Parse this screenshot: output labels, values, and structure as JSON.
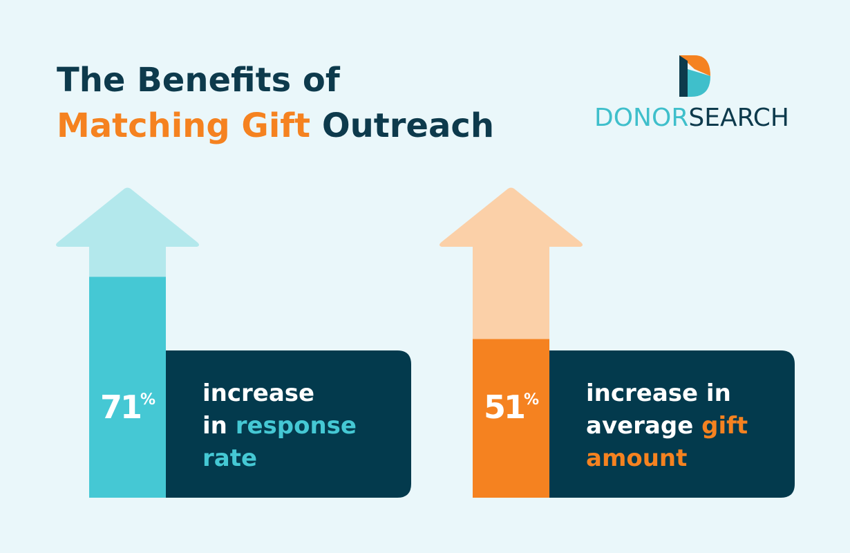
{
  "header": {
    "accent_color": "#f58220",
    "title_lines": [
      [
        {
          "text": "The Benefits of"
        }
      ],
      [
        {
          "text": "Matching Gift",
          "accent": true
        },
        {
          "text": " Outreach"
        }
      ]
    ]
  },
  "logo": {
    "accent_color": "#3fbfcb",
    "parts": [
      {
        "text": "DONOR",
        "accent": true
      },
      {
        "text": "SEARCH"
      }
    ]
  },
  "stats": [
    {
      "value": 71,
      "unit": "%",
      "color": "#45c8d4",
      "light_color": "#b3e8ec",
      "lines": [
        [
          {
            "text": "increase"
          }
        ],
        [
          {
            "text": "in "
          },
          {
            "text": "response",
            "accent": true
          }
        ],
        [
          {
            "text": "rate",
            "accent": true
          }
        ]
      ]
    },
    {
      "value": 51,
      "unit": "%",
      "color": "#f58220",
      "light_color": "#fbd0a8",
      "lines": [
        [
          {
            "text": "increase in"
          }
        ],
        [
          {
            "text": "average "
          },
          {
            "text": "gift",
            "accent": true
          }
        ],
        [
          {
            "text": "amount",
            "accent": true
          }
        ]
      ]
    }
  ]
}
